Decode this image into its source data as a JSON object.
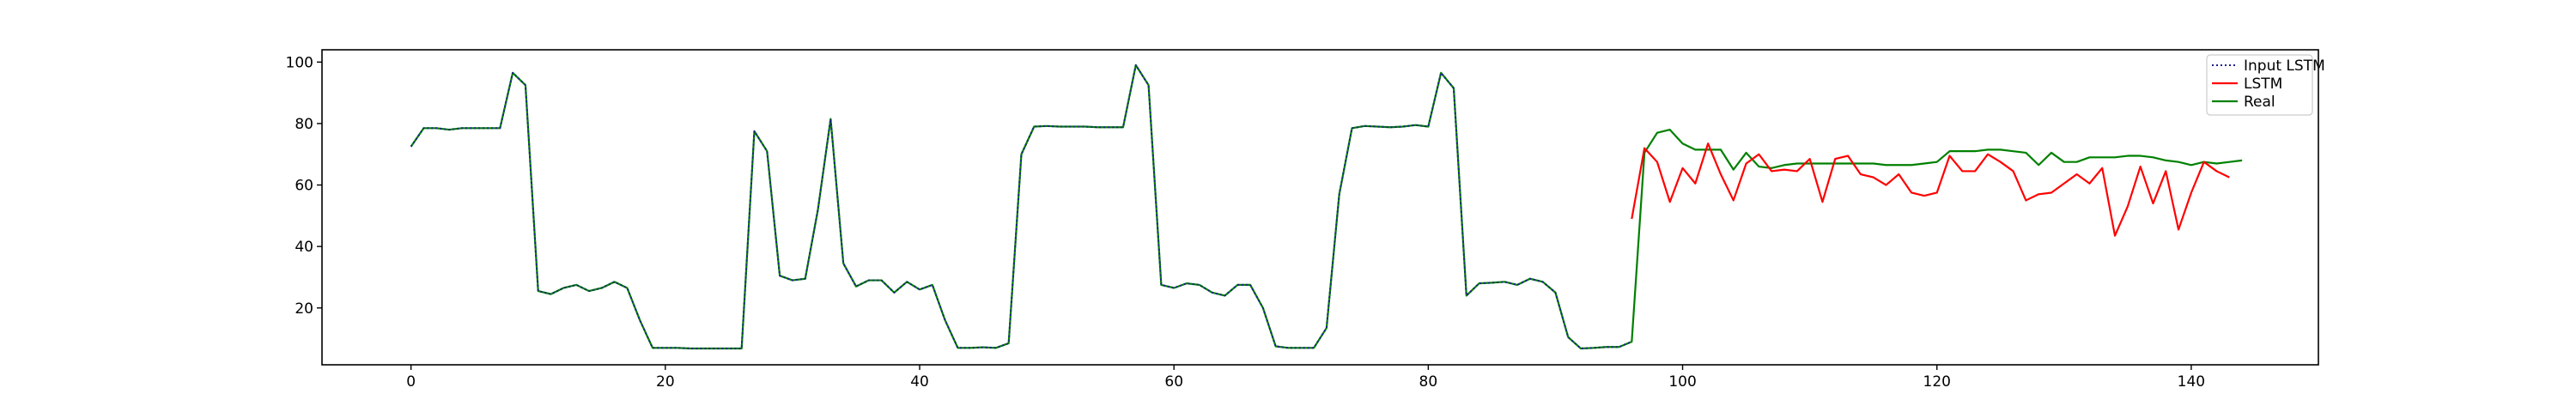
{
  "chart_data": {
    "type": "line",
    "title": "",
    "xlabel": "",
    "ylabel": "",
    "xlim": [
      -7,
      150
    ],
    "ylim": [
      1.5,
      104
    ],
    "xticks": [
      0,
      20,
      40,
      60,
      80,
      100,
      120,
      140
    ],
    "yticks": [
      20,
      40,
      60,
      80,
      100
    ],
    "grid": false,
    "legend_position": "top-right",
    "series": [
      {
        "name": "Input LSTM",
        "color": "#1f1f8f",
        "style": "dotted",
        "x_start": 0,
        "values": [
          72.5,
          78.5,
          78.5,
          78.0,
          78.5,
          78.5,
          78.5,
          78.5,
          96.5,
          92.5,
          25.5,
          24.5,
          26.5,
          27.5,
          25.5,
          26.5,
          28.5,
          26.5,
          16.0,
          7.0,
          7.0,
          7.0,
          6.8,
          6.8,
          6.8,
          6.8,
          6.8,
          77.5,
          71.0,
          30.5,
          29.0,
          29.5,
          52.0,
          81.5,
          34.5,
          27.0,
          29.0,
          29.0,
          25.0,
          28.5,
          26.0,
          27.5,
          16.0,
          7.0,
          7.0,
          7.2,
          7.0,
          8.5,
          70.0,
          79.0,
          79.2,
          79.0,
          79.0,
          79.0,
          78.8,
          78.8,
          78.8,
          99.0,
          92.5,
          27.5,
          26.5,
          28.0,
          27.5,
          25.0,
          24.0,
          27.5,
          27.5,
          20.0,
          7.5,
          7.0,
          7.0,
          7.0,
          13.5,
          57.0,
          78.5,
          79.2,
          79.0,
          78.8,
          79.0,
          79.5,
          79.0,
          96.5,
          91.5,
          24.0,
          28.0,
          28.2,
          28.5,
          27.5,
          29.5,
          28.5,
          25.0,
          10.5,
          6.8,
          7.0,
          7.3,
          7.3,
          9.0
        ]
      },
      {
        "name": "LSTM",
        "color": "#ff0000",
        "style": "solid",
        "x_start": 96,
        "values": [
          49.0,
          72.0,
          67.5,
          54.5,
          65.5,
          60.5,
          73.5,
          63.5,
          55.0,
          67.0,
          70.0,
          64.5,
          65.0,
          64.5,
          68.5,
          54.5,
          68.5,
          69.5,
          63.5,
          62.5,
          60.0,
          63.5,
          57.5,
          56.5,
          57.5,
          69.5,
          64.5,
          64.5,
          70.0,
          67.5,
          64.5,
          55.0,
          57.0,
          57.5,
          60.5,
          63.5,
          60.5,
          65.5,
          43.5,
          53.0,
          66.0,
          54.0,
          64.5,
          45.5,
          57.5,
          67.5,
          64.5,
          62.5
        ]
      },
      {
        "name": "Real",
        "color": "#008000",
        "style": "solid",
        "x_start": 0,
        "values": [
          72.5,
          78.5,
          78.5,
          78.0,
          78.5,
          78.5,
          78.5,
          78.5,
          96.5,
          92.5,
          25.5,
          24.5,
          26.5,
          27.5,
          25.5,
          26.5,
          28.5,
          26.5,
          16.0,
          7.0,
          7.0,
          7.0,
          6.8,
          6.8,
          6.8,
          6.8,
          6.8,
          77.5,
          71.0,
          30.5,
          29.0,
          29.5,
          52.0,
          81.5,
          34.5,
          27.0,
          29.0,
          29.0,
          25.0,
          28.5,
          26.0,
          27.5,
          16.0,
          7.0,
          7.0,
          7.2,
          7.0,
          8.5,
          70.0,
          79.0,
          79.2,
          79.0,
          79.0,
          79.0,
          78.8,
          78.8,
          78.8,
          99.0,
          92.5,
          27.5,
          26.5,
          28.0,
          27.5,
          25.0,
          24.0,
          27.5,
          27.5,
          20.0,
          7.5,
          7.0,
          7.0,
          7.0,
          13.5,
          57.0,
          78.5,
          79.2,
          79.0,
          78.8,
          79.0,
          79.5,
          79.0,
          96.5,
          91.5,
          24.0,
          28.0,
          28.2,
          28.5,
          27.5,
          29.5,
          28.5,
          25.0,
          10.5,
          6.8,
          7.0,
          7.3,
          7.3,
          9.0,
          70.5,
          77.0,
          78.0,
          73.5,
          71.5,
          71.5,
          71.5,
          65.0,
          70.5,
          66.0,
          65.5,
          66.5,
          67.0,
          67.0,
          67.0,
          67.0,
          67.0,
          67.0,
          67.0,
          66.5,
          66.5,
          66.5,
          67.0,
          67.5,
          71.0,
          71.0,
          71.0,
          71.5,
          71.5,
          71.0,
          70.5,
          66.5,
          70.5,
          67.5,
          67.5,
          69.0,
          69.0,
          69.0,
          69.5,
          69.5,
          69.0,
          68.0,
          67.5,
          66.5,
          67.5,
          67.0,
          67.5,
          68.0
        ]
      }
    ]
  }
}
